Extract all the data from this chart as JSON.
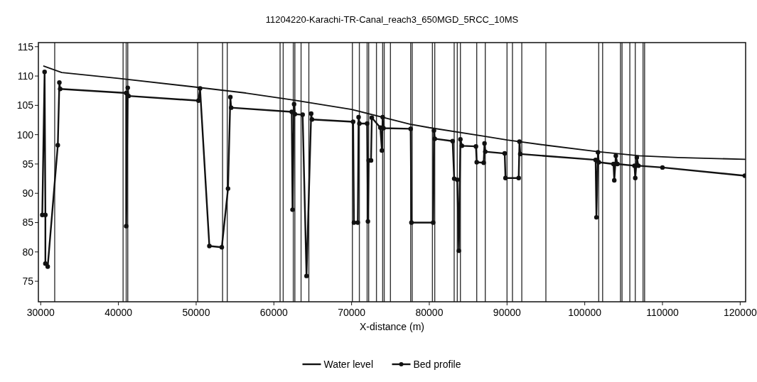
{
  "chart_data": {
    "type": "line",
    "title": "11204220-Karachi-TR-Canal_reach3_650MGD_5RCC_10MS",
    "xlabel": "X-distance (m)",
    "xlim": [
      29700,
      120700
    ],
    "xticks": [
      30000,
      40000,
      50000,
      60000,
      70000,
      80000,
      90000,
      100000,
      110000,
      120000
    ],
    "ylim": [
      71.5,
      115.7
    ],
    "yticks": [
      75,
      80,
      85,
      90,
      95,
      100,
      105,
      110,
      115
    ],
    "grid": false,
    "legend": "bottom",
    "series": [
      {
        "name": "Water level",
        "color": "#111111",
        "marker": "none",
        "x": [
          30400,
          32700,
          40000,
          50000,
          56400,
          62500,
          70000,
          77500,
          80000,
          87200,
          90000,
          95000,
          101700,
          107000,
          112000,
          120600
        ],
        "values": [
          111.7,
          110.6,
          109.6,
          108.1,
          107.1,
          105.9,
          104.3,
          101.8,
          101.2,
          99.7,
          99.1,
          98.2,
          97.1,
          96.4,
          96.1,
          95.8
        ]
      },
      {
        "name": "Bed profile",
        "color": "#111111",
        "marker": "circle",
        "x": [
          30200,
          30500,
          30600,
          30600,
          30900,
          32200,
          32400,
          32500,
          41000,
          41000,
          41200,
          41300,
          50300,
          50500,
          51700,
          53300,
          54100,
          54400,
          54500,
          62300,
          62400,
          62600,
          62700,
          63700,
          64200,
          64800,
          64900,
          70200,
          70300,
          70800,
          70900,
          71000,
          72000,
          72100,
          72200,
          72500,
          72600,
          73700,
          73900,
          74000,
          74100,
          77600,
          77700,
          80500,
          80600,
          80700,
          83000,
          83200,
          83600,
          83800,
          84000,
          84200,
          86000,
          86100,
          87000,
          87100,
          87200,
          89700,
          89800,
          91500,
          91600,
          91700,
          101400,
          101500,
          101700,
          101800,
          103700,
          103800,
          104000,
          104200,
          106400,
          106500,
          106700,
          106900,
          110000,
          120600
        ],
        "values": [
          86.3,
          110.7,
          86.3,
          78,
          77.5,
          98.2,
          108.9,
          107.8,
          107.1,
          84.4,
          108,
          106.6,
          105.8,
          107.9,
          81,
          80.8,
          90.8,
          106.4,
          104.6,
          103.9,
          87.2,
          105.2,
          103.5,
          103.4,
          75.9,
          103.6,
          102.6,
          102.2,
          85,
          85,
          103,
          101.9,
          101.9,
          85.2,
          95.6,
          95.6,
          102.9,
          101.2,
          97.3,
          103,
          101.1,
          101,
          85,
          85,
          100.7,
          99.3,
          98.9,
          92.5,
          92.3,
          80.2,
          99.2,
          98.1,
          98,
          95.3,
          95.2,
          98.5,
          97.1,
          96.8,
          92.6,
          92.6,
          98.8,
          96.7,
          95.7,
          85.9,
          97,
          95.3,
          95,
          92.2,
          96.4,
          95,
          94.7,
          92.6,
          96.1,
          94.7,
          94.4,
          93
        ]
      }
    ],
    "ref_lines": [
      {
        "axis": "x",
        "value": 31800,
        "color": "#333333"
      },
      {
        "axis": "x",
        "value": 40600,
        "color": "#333333"
      },
      {
        "axis": "x",
        "value": 41000,
        "color": "#333333"
      },
      {
        "axis": "x",
        "value": 41200,
        "color": "#333333"
      },
      {
        "axis": "x",
        "value": 50200,
        "color": "#333333"
      },
      {
        "axis": "x",
        "value": 53400,
        "color": "#333333"
      },
      {
        "axis": "x",
        "value": 54000,
        "color": "#333333"
      },
      {
        "axis": "x",
        "value": 60800,
        "color": "#333333"
      },
      {
        "axis": "x",
        "value": 61200,
        "color": "#333333"
      },
      {
        "axis": "x",
        "value": 62500,
        "color": "#333333"
      },
      {
        "axis": "x",
        "value": 62700,
        "color": "#333333"
      },
      {
        "axis": "x",
        "value": 63500,
        "color": "#333333"
      },
      {
        "axis": "x",
        "value": 64500,
        "color": "#333333"
      },
      {
        "axis": "x",
        "value": 70100,
        "color": "#333333"
      },
      {
        "axis": "x",
        "value": 71000,
        "color": "#333333"
      },
      {
        "axis": "x",
        "value": 72000,
        "color": "#333333"
      },
      {
        "axis": "x",
        "value": 72200,
        "color": "#333333"
      },
      {
        "axis": "x",
        "value": 73200,
        "color": "#333333"
      },
      {
        "axis": "x",
        "value": 74000,
        "color": "#333333"
      },
      {
        "axis": "x",
        "value": 74200,
        "color": "#333333"
      },
      {
        "axis": "x",
        "value": 75000,
        "color": "#333333"
      },
      {
        "axis": "x",
        "value": 77600,
        "color": "#333333"
      },
      {
        "axis": "x",
        "value": 77800,
        "color": "#333333"
      },
      {
        "axis": "x",
        "value": 80400,
        "color": "#333333"
      },
      {
        "axis": "x",
        "value": 80700,
        "color": "#333333"
      },
      {
        "axis": "x",
        "value": 83200,
        "color": "#333333"
      },
      {
        "axis": "x",
        "value": 83600,
        "color": "#333333"
      },
      {
        "axis": "x",
        "value": 84000,
        "color": "#333333"
      },
      {
        "axis": "x",
        "value": 86100,
        "color": "#333333"
      },
      {
        "axis": "x",
        "value": 87200,
        "color": "#333333"
      },
      {
        "axis": "x",
        "value": 90000,
        "color": "#333333"
      },
      {
        "axis": "x",
        "value": 90700,
        "color": "#333333"
      },
      {
        "axis": "x",
        "value": 91900,
        "color": "#333333"
      },
      {
        "axis": "x",
        "value": 95000,
        "color": "#333333"
      },
      {
        "axis": "x",
        "value": 101800,
        "color": "#333333"
      },
      {
        "axis": "x",
        "value": 102300,
        "color": "#333333"
      },
      {
        "axis": "x",
        "value": 104600,
        "color": "#333333"
      },
      {
        "axis": "x",
        "value": 104800,
        "color": "#333333"
      },
      {
        "axis": "x",
        "value": 105800,
        "color": "#333333"
      },
      {
        "axis": "x",
        "value": 106500,
        "color": "#333333"
      },
      {
        "axis": "x",
        "value": 107500,
        "color": "#333333"
      },
      {
        "axis": "x",
        "value": 107700,
        "color": "#333333"
      }
    ]
  }
}
